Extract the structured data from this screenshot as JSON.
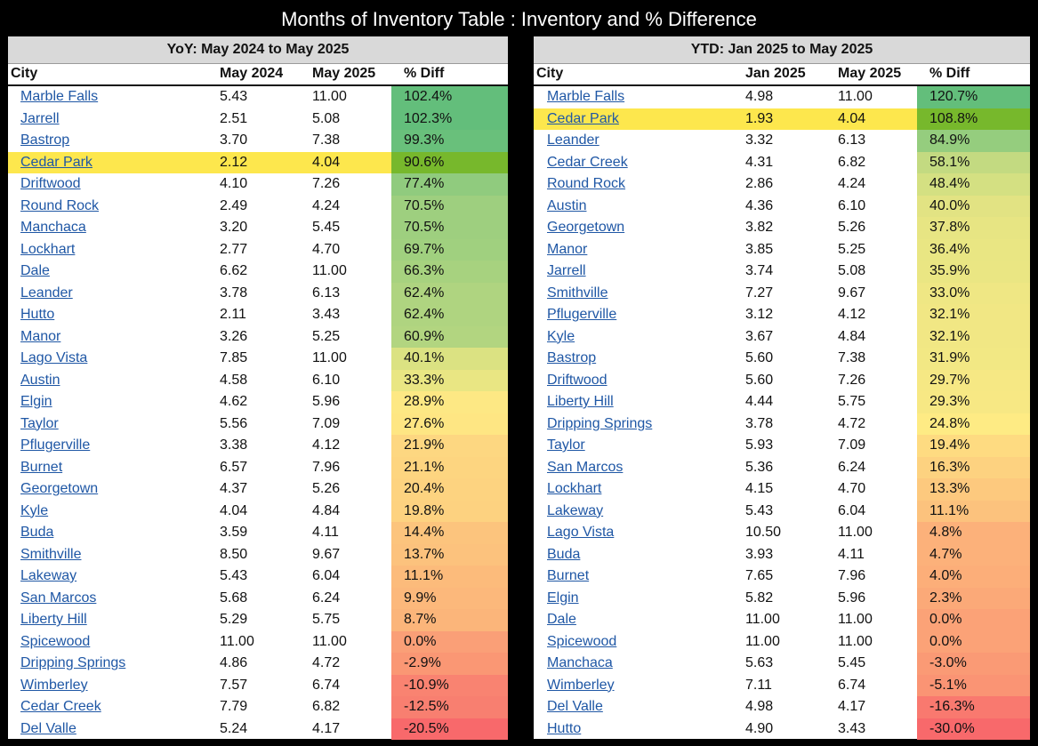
{
  "title": "Months of Inventory Table : Inventory and % Difference",
  "yoy": {
    "subtitle": "YoY: May 2024 to May 2025",
    "headers": [
      "City",
      "May 2024",
      "May 2025",
      "% Diff"
    ],
    "highlight_color": "#fde74d",
    "rows": [
      {
        "city": "Marble Falls",
        "a": "5.43",
        "b": "11.00",
        "diff": "102.4%",
        "color": "#63be7b",
        "hl": false
      },
      {
        "city": "Jarrell",
        "a": "2.51",
        "b": "5.08",
        "diff": "102.3%",
        "color": "#63be7b",
        "hl": false
      },
      {
        "city": "Bastrop",
        "a": "3.70",
        "b": "7.38",
        "diff": "99.3%",
        "color": "#69c07b",
        "hl": false
      },
      {
        "city": "Cedar Park",
        "a": "2.12",
        "b": "4.04",
        "diff": "90.6%",
        "color": "#77b82c",
        "hl": true
      },
      {
        "city": "Driftwood",
        "a": "4.10",
        "b": "7.26",
        "diff": "77.4%",
        "color": "#90cb7e",
        "hl": false
      },
      {
        "city": "Round Rock",
        "a": "2.49",
        "b": "4.24",
        "diff": "70.5%",
        "color": "#9ecf7f",
        "hl": false
      },
      {
        "city": "Manchaca",
        "a": "3.20",
        "b": "5.45",
        "diff": "70.5%",
        "color": "#9ecf7f",
        "hl": false
      },
      {
        "city": "Lockhart",
        "a": "2.77",
        "b": "4.70",
        "diff": "69.7%",
        "color": "#a0d07f",
        "hl": false
      },
      {
        "city": "Dale",
        "a": "6.62",
        "b": "11.00",
        "diff": "66.3%",
        "color": "#a7d27f",
        "hl": false
      },
      {
        "city": "Leander",
        "a": "3.78",
        "b": "6.13",
        "diff": "62.4%",
        "color": "#afd480",
        "hl": false
      },
      {
        "city": "Hutto",
        "a": "2.11",
        "b": "3.43",
        "diff": "62.4%",
        "color": "#afd480",
        "hl": false
      },
      {
        "city": "Manor",
        "a": "3.26",
        "b": "5.25",
        "diff": "60.9%",
        "color": "#b2d580",
        "hl": false
      },
      {
        "city": "Lago Vista",
        "a": "7.85",
        "b": "11.00",
        "diff": "40.1%",
        "color": "#dbe282",
        "hl": false
      },
      {
        "city": "Austin",
        "a": "4.58",
        "b": "6.10",
        "diff": "33.3%",
        "color": "#e9e683",
        "hl": false
      },
      {
        "city": "Elgin",
        "a": "4.62",
        "b": "5.96",
        "diff": "28.9%",
        "color": "#fde884",
        "hl": false
      },
      {
        "city": "Taylor",
        "a": "5.56",
        "b": "7.09",
        "diff": "27.6%",
        "color": "#fee683",
        "hl": false
      },
      {
        "city": "Pflugerville",
        "a": "3.38",
        "b": "4.12",
        "diff": "21.9%",
        "color": "#fdd781",
        "hl": false
      },
      {
        "city": "Burnet",
        "a": "6.57",
        "b": "7.96",
        "diff": "21.1%",
        "color": "#fdd580",
        "hl": false
      },
      {
        "city": "Georgetown",
        "a": "4.37",
        "b": "5.26",
        "diff": "20.4%",
        "color": "#fdd380",
        "hl": false
      },
      {
        "city": "Kyle",
        "a": "4.04",
        "b": "4.84",
        "diff": "19.8%",
        "color": "#fdd280",
        "hl": false
      },
      {
        "city": "Buda",
        "a": "3.59",
        "b": "4.11",
        "diff": "14.4%",
        "color": "#fcc47d",
        "hl": false
      },
      {
        "city": "Smithville",
        "a": "8.50",
        "b": "9.67",
        "diff": "13.7%",
        "color": "#fcc27d",
        "hl": false
      },
      {
        "city": "Lakeway",
        "a": "5.43",
        "b": "6.04",
        "diff": "11.1%",
        "color": "#fcbb7b",
        "hl": false
      },
      {
        "city": "San Marcos",
        "a": "5.68",
        "b": "6.24",
        "diff": "9.9%",
        "color": "#fcb87b",
        "hl": false
      },
      {
        "city": "Liberty Hill",
        "a": "5.29",
        "b": "5.75",
        "diff": "8.7%",
        "color": "#fbb57a",
        "hl": false
      },
      {
        "city": "Spicewood",
        "a": "11.00",
        "b": "11.00",
        "diff": "0.0%",
        "color": "#fa9f77",
        "hl": false
      },
      {
        "city": "Dripping Springs",
        "a": "4.86",
        "b": "4.72",
        "diff": "-2.9%",
        "color": "#fa9774",
        "hl": false
      },
      {
        "city": "Wimberley",
        "a": "7.57",
        "b": "6.74",
        "diff": "-10.9%",
        "color": "#f98371",
        "hl": false
      },
      {
        "city": "Cedar Creek",
        "a": "7.79",
        "b": "6.82",
        "diff": "-12.5%",
        "color": "#f87f70",
        "hl": false
      },
      {
        "city": "Del Valle",
        "a": "5.24",
        "b": "4.17",
        "diff": "-20.5%",
        "color": "#f8696b",
        "hl": false
      }
    ]
  },
  "ytd": {
    "subtitle": "YTD: Jan 2025 to May 2025",
    "headers": [
      "City",
      "Jan 2025",
      "May 2025",
      "% Diff"
    ],
    "rows": [
      {
        "city": "Marble Falls",
        "a": "4.98",
        "b": "11.00",
        "diff": "120.7%",
        "color": "#63be7b",
        "hl": false
      },
      {
        "city": "Cedar Park",
        "a": "1.93",
        "b": "4.04",
        "diff": "108.8%",
        "color": "#77b82c",
        "hl": true
      },
      {
        "city": "Leander",
        "a": "3.32",
        "b": "6.13",
        "diff": "84.9%",
        "color": "#95cd7e",
        "hl": false
      },
      {
        "city": "Cedar Creek",
        "a": "4.31",
        "b": "6.82",
        "diff": "58.1%",
        "color": "#c3da81",
        "hl": false
      },
      {
        "city": "Round Rock",
        "a": "2.86",
        "b": "4.24",
        "diff": "48.4%",
        "color": "#d4e082",
        "hl": false
      },
      {
        "city": "Austin",
        "a": "4.36",
        "b": "6.10",
        "diff": "40.0%",
        "color": "#e2e383",
        "hl": false
      },
      {
        "city": "Georgetown",
        "a": "3.82",
        "b": "5.26",
        "diff": "37.8%",
        "color": "#e7e583",
        "hl": false
      },
      {
        "city": "Manor",
        "a": "3.85",
        "b": "5.25",
        "diff": "36.4%",
        "color": "#e9e683",
        "hl": false
      },
      {
        "city": "Jarrell",
        "a": "3.74",
        "b": "5.08",
        "diff": "35.9%",
        "color": "#eae683",
        "hl": false
      },
      {
        "city": "Smithville",
        "a": "7.27",
        "b": "9.67",
        "diff": "33.0%",
        "color": "#efe784",
        "hl": false
      },
      {
        "city": "Pflugerville",
        "a": "3.12",
        "b": "4.12",
        "diff": "32.1%",
        "color": "#f1e784",
        "hl": false
      },
      {
        "city": "Kyle",
        "a": "3.67",
        "b": "4.84",
        "diff": "32.1%",
        "color": "#f1e784",
        "hl": false
      },
      {
        "city": "Bastrop",
        "a": "5.60",
        "b": "7.38",
        "diff": "31.9%",
        "color": "#f2e884",
        "hl": false
      },
      {
        "city": "Driftwood",
        "a": "5.60",
        "b": "7.26",
        "diff": "29.7%",
        "color": "#f6e884",
        "hl": false
      },
      {
        "city": "Liberty Hill",
        "a": "4.44",
        "b": "5.75",
        "diff": "29.3%",
        "color": "#f7e884",
        "hl": false
      },
      {
        "city": "Dripping Springs",
        "a": "3.78",
        "b": "4.72",
        "diff": "24.8%",
        "color": "#feeb84",
        "hl": false
      },
      {
        "city": "Taylor",
        "a": "5.93",
        "b": "7.09",
        "diff": "19.4%",
        "color": "#fedb81",
        "hl": false
      },
      {
        "city": "San Marcos",
        "a": "5.36",
        "b": "6.24",
        "diff": "16.3%",
        "color": "#fdd280",
        "hl": false
      },
      {
        "city": "Lockhart",
        "a": "4.15",
        "b": "4.70",
        "diff": "13.3%",
        "color": "#fdc97e",
        "hl": false
      },
      {
        "city": "Lakeway",
        "a": "5.43",
        "b": "6.04",
        "diff": "11.1%",
        "color": "#fcc27d",
        "hl": false
      },
      {
        "city": "Lago Vista",
        "a": "10.50",
        "b": "11.00",
        "diff": "4.8%",
        "color": "#fcb17a",
        "hl": false
      },
      {
        "city": "Buda",
        "a": "3.93",
        "b": "4.11",
        "diff": "4.7%",
        "color": "#fcb17a",
        "hl": false
      },
      {
        "city": "Burnet",
        "a": "7.65",
        "b": "7.96",
        "diff": "4.0%",
        "color": "#fcae79",
        "hl": false
      },
      {
        "city": "Elgin",
        "a": "5.82",
        "b": "5.96",
        "diff": "2.3%",
        "color": "#fba978",
        "hl": false
      },
      {
        "city": "Dale",
        "a": "11.00",
        "b": "11.00",
        "diff": "0.0%",
        "color": "#fba277",
        "hl": false
      },
      {
        "city": "Spicewood",
        "a": "11.00",
        "b": "11.00",
        "diff": "0.0%",
        "color": "#fba277",
        "hl": false
      },
      {
        "city": "Manchaca",
        "a": "5.63",
        "b": "5.45",
        "diff": "-3.0%",
        "color": "#fa9a75",
        "hl": false
      },
      {
        "city": "Wimberley",
        "a": "7.11",
        "b": "6.74",
        "diff": "-5.1%",
        "color": "#fa9474",
        "hl": false
      },
      {
        "city": "Del Valle",
        "a": "4.98",
        "b": "4.17",
        "diff": "-16.3%",
        "color": "#f9796f",
        "hl": false
      },
      {
        "city": "Hutto",
        "a": "4.90",
        "b": "3.43",
        "diff": "-30.0%",
        "color": "#f8696b",
        "hl": false
      }
    ]
  }
}
